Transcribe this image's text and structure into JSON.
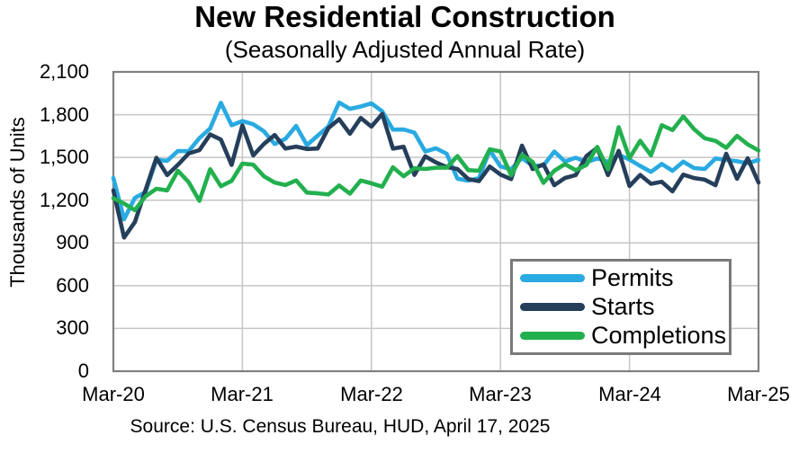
{
  "title": "New Residential Construction",
  "subtitle": "(Seasonally Adjusted Annual Rate)",
  "source": "Source:  U.S. Census Bureau, HUD, April 17, 2025",
  "chart_data": {
    "type": "line",
    "title": "New Residential Construction",
    "subtitle": "(Seasonally Adjusted Annual Rate)",
    "ylabel": "Thousands of Units",
    "xlabel": "",
    "ylim": [
      0,
      2100
    ],
    "y_tick_step": 300,
    "grid": true,
    "legend_position": "inside-bottom-right",
    "y_tick_labels": [
      "2,100",
      "1,800",
      "1,500",
      "1,200",
      "900",
      "600",
      "300",
      "0"
    ],
    "x_tick_labels": [
      "Mar-20",
      "Mar-21",
      "Mar-22",
      "Mar-23",
      "Mar-24",
      "Mar-25"
    ],
    "style": {
      "grid_color": "#C6C6C6",
      "frame_color": "#808080",
      "line_width": 4.6
    },
    "x": [
      "Mar-20",
      "Apr-20",
      "May-20",
      "Jun-20",
      "Jul-20",
      "Aug-20",
      "Sep-20",
      "Oct-20",
      "Nov-20",
      "Dec-20",
      "Jan-21",
      "Feb-21",
      "Mar-21",
      "Apr-21",
      "May-21",
      "Jun-21",
      "Jul-21",
      "Aug-21",
      "Sep-21",
      "Oct-21",
      "Nov-21",
      "Dec-21",
      "Jan-22",
      "Feb-22",
      "Mar-22",
      "Apr-22",
      "May-22",
      "Jun-22",
      "Jul-22",
      "Aug-22",
      "Sep-22",
      "Oct-22",
      "Nov-22",
      "Dec-22",
      "Jan-23",
      "Feb-23",
      "Mar-23",
      "Apr-23",
      "May-23",
      "Jun-23",
      "Jul-23",
      "Aug-23",
      "Sep-23",
      "Oct-23",
      "Nov-23",
      "Dec-23",
      "Jan-24",
      "Feb-24",
      "Mar-24",
      "Apr-24",
      "May-24",
      "Jun-24",
      "Jul-24",
      "Aug-24",
      "Sep-24",
      "Oct-24",
      "Nov-24",
      "Dec-24",
      "Jan-25",
      "Feb-25",
      "Mar-25"
    ],
    "series": [
      {
        "name": "Permits",
        "color": "#29AAE1",
        "values": [
          1356,
          1066,
          1216,
          1258,
          1483,
          1476,
          1545,
          1544,
          1635,
          1704,
          1883,
          1726,
          1755,
          1733,
          1683,
          1594,
          1630,
          1721,
          1586,
          1653,
          1717,
          1885,
          1841,
          1857,
          1879,
          1823,
          1695,
          1696,
          1674,
          1542,
          1564,
          1526,
          1351,
          1337,
          1354,
          1550,
          1437,
          1417,
          1496,
          1441,
          1443,
          1541,
          1471,
          1498,
          1467,
          1493,
          1470,
          1518,
          1485,
          1440,
          1399,
          1454,
          1406,
          1470,
          1425,
          1419,
          1493,
          1482,
          1473,
          1459,
          1482
        ]
      },
      {
        "name": "Starts",
        "color": "#253F5B",
        "values": [
          1269,
          938,
          1046,
          1273,
          1497,
          1376,
          1448,
          1528,
          1551,
          1661,
          1625,
          1447,
          1725,
          1514,
          1594,
          1657,
          1562,
          1576,
          1559,
          1563,
          1706,
          1768,
          1666,
          1777,
          1716,
          1805,
          1562,
          1575,
          1377,
          1508,
          1465,
          1432,
          1419,
          1348,
          1334,
          1436,
          1380,
          1348,
          1583,
          1418,
          1451,
          1305,
          1356,
          1376,
          1510,
          1568,
          1376,
          1546,
          1299,
          1377,
          1315,
          1329,
          1262,
          1379,
          1355,
          1344,
          1305,
          1526,
          1350,
          1494,
          1324
        ]
      },
      {
        "name": "Completions",
        "color": "#22B04E",
        "values": [
          1214,
          1176,
          1130,
          1227,
          1280,
          1269,
          1406,
          1326,
          1195,
          1417,
          1298,
          1335,
          1457,
          1449,
          1368,
          1324,
          1306,
          1339,
          1253,
          1248,
          1240,
          1303,
          1246,
          1338,
          1318,
          1295,
          1431,
          1368,
          1424,
          1419,
          1428,
          1428,
          1509,
          1411,
          1406,
          1557,
          1542,
          1375,
          1518,
          1468,
          1321,
          1406,
          1453,
          1410,
          1447,
          1574,
          1416,
          1712,
          1495,
          1617,
          1514,
          1726,
          1692,
          1788,
          1699,
          1634,
          1616,
          1568,
          1651,
          1592,
          1549
        ]
      }
    ]
  }
}
